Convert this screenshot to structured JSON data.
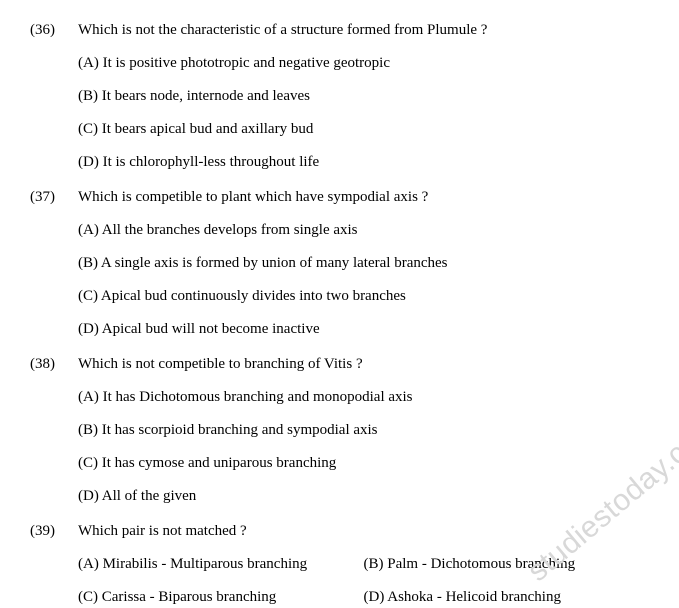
{
  "watermark": "studiestoday.com",
  "questions": [
    {
      "num": "(36)",
      "text": "Which is not the characteristic of a structure formed from Plumule ?",
      "options": [
        "(A) It is positive phototropic and negative geotropic",
        "(B) It bears node, internode and leaves",
        "(C) It bears apical bud and axillary bud",
        "(D) It is chlorophyll-less throughout life"
      ]
    },
    {
      "num": "(37)",
      "text": "Which is competible to plant which have sympodial axis ?",
      "options": [
        "(A) All the branches develops from single axis",
        "(B) A single axis is formed by union of many lateral branches",
        "(C) Apical bud continuously divides into two branches",
        "(D) Apical bud will not become inactive"
      ]
    },
    {
      "num": "(38)",
      "text": "Which is not competible to branching of Vitis ?",
      "options": [
        "(A) It has Dichotomous branching and monopodial axis",
        "(B) It has scorpioid branching and sympodial axis",
        "(C) It has cymose and uniparous branching",
        "(D) All of the given"
      ]
    },
    {
      "num": "(39)",
      "text": "Which pair is not matched ?",
      "optionsRow1": {
        "left": "(A) Mirabilis - Multiparous branching",
        "right": "(B) Palm - Dichotomous branching"
      },
      "optionsRow2": {
        "left": "(C) Carissa - Biparous branching",
        "right": "(D) Ashoka - Helicoid branching"
      }
    }
  ]
}
